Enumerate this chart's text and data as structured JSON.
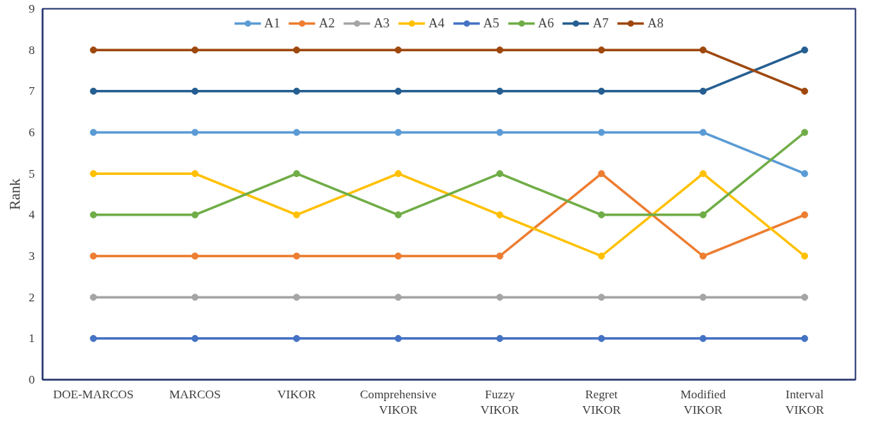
{
  "chart_data": {
    "type": "line",
    "ylabel": "Rank",
    "categories": [
      "DOE-MARCOS",
      "MARCOS",
      "VIKOR",
      "Comprehensive VIKOR",
      "Fuzzy VIKOR",
      "Regret VIKOR",
      "Modified VIKOR",
      "Interval VIKOR"
    ],
    "ylim": [
      0,
      9
    ],
    "yticks": [
      0,
      1,
      2,
      3,
      4,
      5,
      6,
      7,
      8,
      9
    ],
    "grid": false,
    "legend": "top",
    "marker": "circle",
    "line_style": "solid",
    "series": [
      {
        "name": "A1",
        "color": "#5b9bd5",
        "values": [
          6,
          6,
          6,
          6,
          6,
          6,
          6,
          5
        ]
      },
      {
        "name": "A2",
        "color": "#ed7d31",
        "values": [
          3,
          3,
          3,
          3,
          3,
          5,
          3,
          4
        ]
      },
      {
        "name": "A3",
        "color": "#a5a5a5",
        "values": [
          2,
          2,
          2,
          2,
          2,
          2,
          2,
          2
        ]
      },
      {
        "name": "A4",
        "color": "#ffc000",
        "values": [
          5,
          5,
          4,
          5,
          4,
          3,
          5,
          3
        ]
      },
      {
        "name": "A5",
        "color": "#4472c4",
        "values": [
          1,
          1,
          1,
          1,
          1,
          1,
          1,
          1
        ]
      },
      {
        "name": "A6",
        "color": "#70ad47",
        "values": [
          4,
          4,
          5,
          4,
          5,
          4,
          4,
          6
        ]
      },
      {
        "name": "A7",
        "color": "#255e91",
        "values": [
          7,
          7,
          7,
          7,
          7,
          7,
          7,
          8
        ]
      },
      {
        "name": "A8",
        "color": "#9e480e",
        "values": [
          8,
          8,
          8,
          8,
          8,
          8,
          8,
          7
        ]
      }
    ]
  }
}
